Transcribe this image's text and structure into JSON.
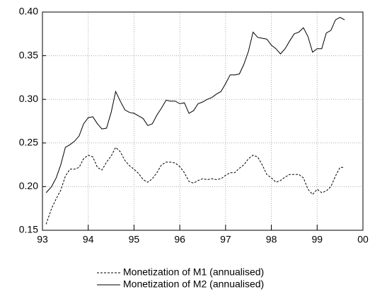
{
  "chart_data": {
    "type": "line",
    "x": [
      93.08,
      93.2,
      93.3,
      93.4,
      93.5,
      93.6,
      93.7,
      93.8,
      93.9,
      94.0,
      94.1,
      94.2,
      94.3,
      94.4,
      94.5,
      94.6,
      94.7,
      94.8,
      94.9,
      95.0,
      95.1,
      95.2,
      95.3,
      95.4,
      95.5,
      95.6,
      95.7,
      95.8,
      95.9,
      96.0,
      96.1,
      96.2,
      96.3,
      96.4,
      96.5,
      96.6,
      96.7,
      96.8,
      96.9,
      97.0,
      97.1,
      97.2,
      97.3,
      97.4,
      97.5,
      97.6,
      97.7,
      97.8,
      97.9,
      98.0,
      98.1,
      98.2,
      98.3,
      98.4,
      98.5,
      98.6,
      98.7,
      98.8,
      98.9,
      99.0,
      99.1,
      99.2,
      99.3,
      99.4,
      99.5,
      99.6
    ],
    "series": [
      {
        "name": "Monetization of M1 (annualised)",
        "color": "#000000",
        "style": "dashed",
        "values": [
          0.157,
          0.175,
          0.186,
          0.196,
          0.212,
          0.22,
          0.22,
          0.222,
          0.232,
          0.236,
          0.234,
          0.222,
          0.219,
          0.228,
          0.235,
          0.245,
          0.24,
          0.23,
          0.224,
          0.22,
          0.215,
          0.208,
          0.205,
          0.209,
          0.216,
          0.225,
          0.228,
          0.228,
          0.227,
          0.223,
          0.216,
          0.206,
          0.204,
          0.207,
          0.209,
          0.208,
          0.209,
          0.208,
          0.209,
          0.213,
          0.216,
          0.216,
          0.221,
          0.225,
          0.232,
          0.236,
          0.234,
          0.225,
          0.214,
          0.21,
          0.205,
          0.207,
          0.211,
          0.214,
          0.214,
          0.214,
          0.21,
          0.197,
          0.191,
          0.197,
          0.193,
          0.195,
          0.2,
          0.212,
          0.222,
          0.222
        ]
      },
      {
        "name": "Monetization of M2 (annualised)",
        "color": "#000000",
        "style": "solid",
        "values": [
          0.193,
          0.2,
          0.21,
          0.225,
          0.245,
          0.248,
          0.252,
          0.258,
          0.272,
          0.279,
          0.28,
          0.272,
          0.266,
          0.267,
          0.285,
          0.309,
          0.298,
          0.288,
          0.285,
          0.284,
          0.281,
          0.278,
          0.27,
          0.272,
          0.282,
          0.29,
          0.299,
          0.298,
          0.298,
          0.295,
          0.296,
          0.284,
          0.287,
          0.295,
          0.297,
          0.3,
          0.302,
          0.306,
          0.309,
          0.318,
          0.328,
          0.328,
          0.329,
          0.34,
          0.355,
          0.377,
          0.371,
          0.37,
          0.369,
          0.362,
          0.358,
          0.352,
          0.358,
          0.367,
          0.375,
          0.377,
          0.382,
          0.372,
          0.354,
          0.358,
          0.358,
          0.376,
          0.379,
          0.391,
          0.394,
          0.391
        ]
      }
    ],
    "xlim": [
      93,
      100
    ],
    "xticks": [
      93,
      94,
      95,
      96,
      97,
      98,
      99,
      {
        "value": 100,
        "label": "00"
      }
    ],
    "ylim": [
      0.15,
      0.4
    ],
    "yticks": [
      0.15,
      {
        "value": 0.2,
        "label": "0.20"
      },
      0.25,
      {
        "value": 0.3,
        "label": "0.30"
      },
      0.35,
      {
        "value": 0.4,
        "label": "0.40"
      }
    ],
    "grid": true
  }
}
